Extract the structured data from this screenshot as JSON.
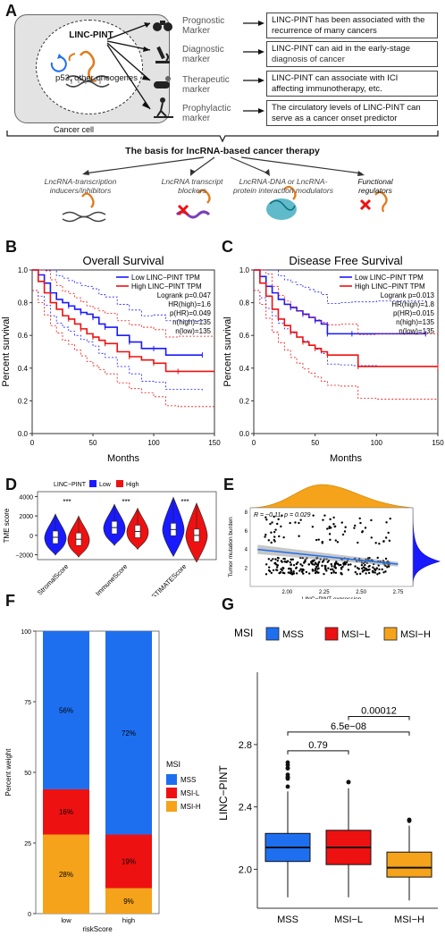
{
  "panelA": {
    "letter": "A",
    "gene": "LINC-PINT",
    "oncogenes": "p53, other oncogenes",
    "cell_label": "Cancer cell",
    "markers": [
      {
        "label1": "Prognostic",
        "label2": "Marker",
        "text1": "LINC-PINT has been associated with the",
        "text2": "recurrence of many cancers",
        "icon": "binoculars-icon"
      },
      {
        "label1": "Diagnostic",
        "label2": "marker",
        "text1": "LINC-PINT can aid in the early-stage",
        "text2": "diagnosis of cancer",
        "icon": "microscope-icon"
      },
      {
        "label1": "Therapeutic",
        "label2": "marker",
        "text1": "LINC-PINT can associate with ICI",
        "text2": "affecting immunotherapy, etc.",
        "icon": "pill-icon"
      },
      {
        "label1": "Prophylactic",
        "label2": "marker",
        "text1": "The circulatory levels of LINC-PINT can",
        "text2": "serve as a cancer onset predictor",
        "icon": "treadmill-icon"
      }
    ],
    "basis_title": "The basis for lncRNA-based cancer therapy",
    "therapies": [
      {
        "l1": "LncRNA-transcription",
        "l2": "inducers/inhibitors",
        "l3": ""
      },
      {
        "l1": "LncRNA transcript",
        "l2": "blockers",
        "l3": ""
      },
      {
        "l1": "LncRNA-DNA or LncRNA-",
        "l2": "protein interaction modulators",
        "l3": ""
      },
      {
        "l1": "Functional",
        "l2": "regulators",
        "l3": ""
      }
    ]
  },
  "panelB": {
    "letter": "B",
    "chart_data": {
      "type": "line",
      "title": "Overall Survival",
      "xlabel": "Months",
      "ylabel": "Percent survival",
      "xlim": [
        0,
        150
      ],
      "ylim": [
        0,
        1.0
      ],
      "xticks": [
        "0",
        "50",
        "100",
        "150"
      ],
      "yticks": [
        "0.0",
        "0.2",
        "0.4",
        "0.6",
        "0.8",
        "1.0"
      ],
      "legend": [
        "Low LINC−PINT TPM",
        "High LINC−PINT TPM"
      ],
      "stats": [
        "Logrank p=0.047",
        "HR(high)=1.6",
        "p(HR)=0.049",
        "n(high)=135",
        "n(low)=135"
      ],
      "series": [
        {
          "name": "Low LINC−PINT TPM",
          "color": "#1a1aff",
          "x": [
            0,
            5,
            10,
            15,
            20,
            25,
            30,
            35,
            40,
            45,
            50,
            55,
            60,
            70,
            80,
            90,
            100,
            110,
            140
          ],
          "y": [
            1.0,
            0.97,
            0.92,
            0.86,
            0.82,
            0.8,
            0.78,
            0.76,
            0.74,
            0.73,
            0.71,
            0.67,
            0.65,
            0.6,
            0.56,
            0.52,
            0.52,
            0.48,
            0.48
          ]
        },
        {
          "name": "High LINC−PINT TPM",
          "color": "#ee1111",
          "x": [
            0,
            5,
            10,
            15,
            20,
            25,
            30,
            35,
            40,
            45,
            50,
            55,
            60,
            70,
            80,
            90,
            100,
            110,
            120,
            150
          ],
          "y": [
            1.0,
            0.93,
            0.86,
            0.8,
            0.76,
            0.72,
            0.7,
            0.67,
            0.64,
            0.61,
            0.59,
            0.57,
            0.55,
            0.5,
            0.47,
            0.45,
            0.43,
            0.38,
            0.38,
            0.38
          ]
        }
      ]
    }
  },
  "panelC": {
    "letter": "C",
    "chart_data": {
      "type": "line",
      "title": "Disease Free Survival",
      "xlabel": "Months",
      "ylabel": "Percent survival",
      "xlim": [
        0,
        150
      ],
      "ylim": [
        0,
        1.0
      ],
      "xticks": [
        "0",
        "50",
        "100",
        "150"
      ],
      "yticks": [
        "0.0",
        "0.2",
        "0.4",
        "0.6",
        "0.8",
        "1.0"
      ],
      "legend": [
        "Low LINC−PINT TPM",
        "High LINC−PINT TPM"
      ],
      "stats": [
        "Logrank p=0.013",
        "HR(high)=1.8",
        "p(HR)=0.015",
        "n(high)=135",
        "n(low)=135"
      ],
      "series": [
        {
          "name": "Low LINC−PINT TPM",
          "color": "#1a1aff",
          "x": [
            0,
            5,
            10,
            15,
            20,
            25,
            30,
            35,
            40,
            45,
            50,
            55,
            60,
            70,
            80,
            100,
            140
          ],
          "y": [
            1.0,
            0.96,
            0.9,
            0.86,
            0.82,
            0.79,
            0.77,
            0.75,
            0.73,
            0.71,
            0.69,
            0.67,
            0.61,
            0.61,
            0.61,
            0.61,
            0.61
          ]
        },
        {
          "name": "High LINC−PINT TPM",
          "color": "#ee1111",
          "x": [
            0,
            5,
            10,
            15,
            20,
            25,
            30,
            35,
            40,
            45,
            50,
            55,
            60,
            70,
            85,
            100,
            150
          ],
          "y": [
            1.0,
            0.92,
            0.84,
            0.76,
            0.7,
            0.66,
            0.62,
            0.59,
            0.56,
            0.54,
            0.52,
            0.5,
            0.48,
            0.48,
            0.41,
            0.41,
            0.41
          ]
        }
      ]
    }
  },
  "panelD": {
    "letter": "D",
    "chart_data": {
      "type": "violin",
      "ylabel": "TME score",
      "legend_title": "LINC−PINT",
      "legend": [
        "Low",
        "High"
      ],
      "colors": [
        "#1a1aff",
        "#ee1111"
      ],
      "ylim": [
        -2500,
        4500
      ],
      "yticks": [
        "−2000",
        "0",
        "2000",
        "4000"
      ],
      "categories": [
        "StromalScore",
        "ImmuneScore",
        "ESTIMATEScore"
      ],
      "significance": [
        "***",
        "***",
        "***"
      ],
      "series": [
        {
          "name": "Low",
          "medians": [
            -200,
            800,
            600
          ]
        },
        {
          "name": "High",
          "medians": [
            -400,
            400,
            0
          ]
        }
      ]
    }
  },
  "panelE": {
    "letter": "E",
    "chart_data": {
      "type": "scatter",
      "xlabel": "LINC−PINT expression",
      "ylabel": "Tumor mutation burden",
      "annotation": "R = −0.11, p = 0.029",
      "xlim": [
        1.75,
        2.85
      ],
      "ylim": [
        0,
        8.5
      ],
      "xticks": [
        "2.00",
        "2.25",
        "2.50",
        "2.75"
      ],
      "yticks": [
        "2",
        "4",
        "6",
        "8"
      ],
      "fit": {
        "x": [
          1.8,
          2.75
        ],
        "y": [
          4.0,
          2.4
        ]
      }
    }
  },
  "panelF": {
    "letter": "F",
    "chart_data": {
      "type": "bar",
      "xlabel": "riskScore",
      "ylabel": "Percent weight",
      "categories": [
        "low",
        "high"
      ],
      "yticks": [
        "0",
        "25",
        "50",
        "75",
        "100"
      ],
      "legend_title": "MSI",
      "series": [
        {
          "name": "MSS",
          "color": "#1e6ff0",
          "values": [
            56,
            72
          ]
        },
        {
          "name": "MSI-L",
          "color": "#ee1111",
          "values": [
            16,
            19
          ]
        },
        {
          "name": "MSI-H",
          "color": "#f5a31a",
          "values": [
            28,
            9
          ]
        }
      ],
      "labels": [
        [
          "56%",
          "16%",
          "28%"
        ],
        [
          "72%",
          "19%",
          "9%"
        ]
      ]
    }
  },
  "panelG": {
    "letter": "G",
    "chart_data": {
      "type": "box",
      "ylabel": "LINC−PINT",
      "legend_title": "MSI",
      "categories": [
        "MSS",
        "MSI−L",
        "MSI−H"
      ],
      "colors": [
        "#1e6ff0",
        "#ee1111",
        "#f5a31a"
      ],
      "ylim": [
        1.75,
        3.0
      ],
      "yticks": [
        "2.0",
        "2.4",
        "2.8"
      ],
      "boxes": [
        {
          "q1": 2.05,
          "median": 2.14,
          "q3": 2.23,
          "lo": 1.82,
          "hi": 2.5
        },
        {
          "q1": 2.03,
          "median": 2.14,
          "q3": 2.25,
          "lo": 1.82,
          "hi": 2.52
        },
        {
          "q1": 1.95,
          "median": 2.01,
          "q3": 2.11,
          "lo": 1.8,
          "hi": 2.28
        }
      ],
      "comparisons": [
        "0.79",
        "6.5e−08",
        "0.00012"
      ]
    }
  }
}
